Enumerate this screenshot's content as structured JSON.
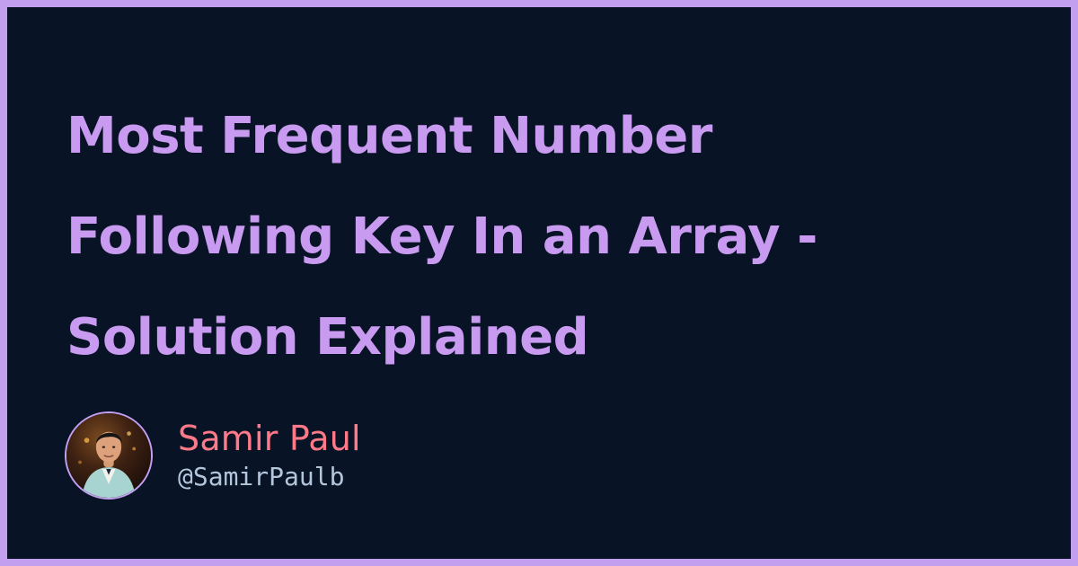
{
  "title": "Most Frequent Number\nFollowing Key In an Array -\nSolution Explained",
  "author": {
    "name": "Samir Paul",
    "handle": "@SamirPaulb"
  },
  "colors": {
    "background": "#081325",
    "frame": "#c39ff0",
    "title": "#c89bf0",
    "name": "#ff7a88",
    "handle": "#b4c6dc"
  }
}
